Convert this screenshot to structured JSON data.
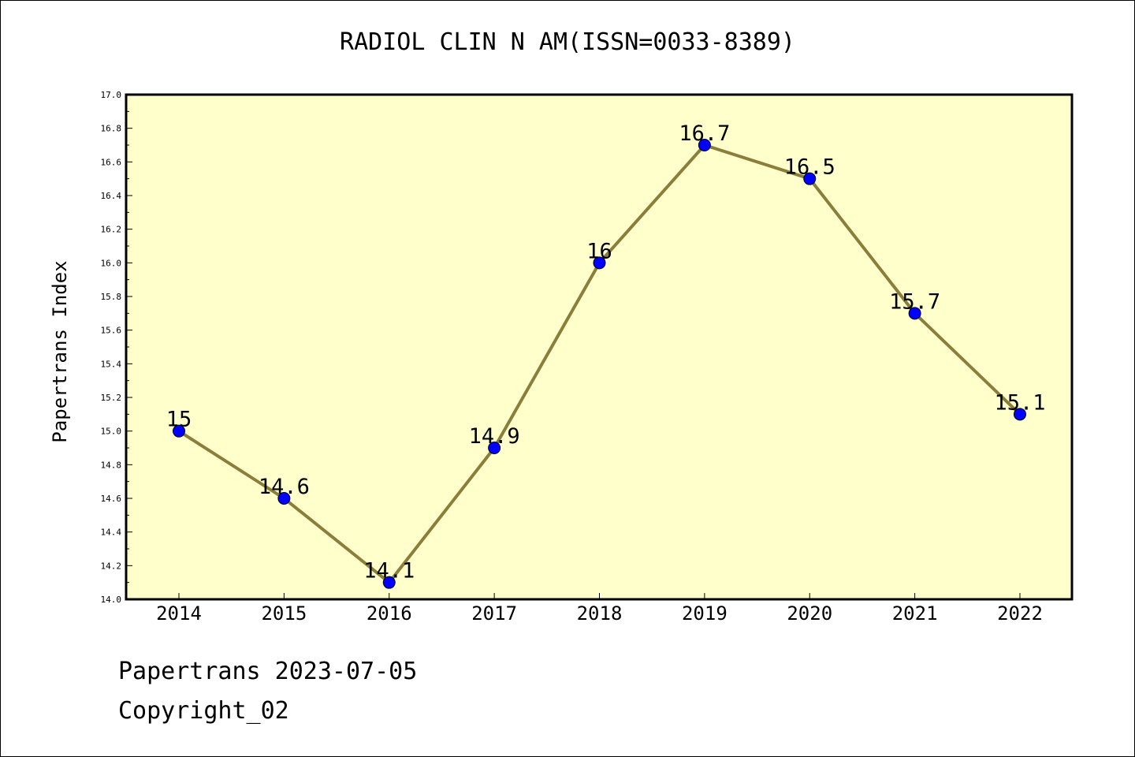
{
  "chart_data": {
    "type": "line",
    "title": "RADIOL CLIN N AM(ISSN=0033-8389)",
    "xlabel": "",
    "ylabel": "Papertrans Index",
    "x": [
      "2014",
      "2015",
      "2016",
      "2017",
      "2018",
      "2019",
      "2020",
      "2021",
      "2022"
    ],
    "series": [
      {
        "values": [
          15,
          14.6,
          14.1,
          14.9,
          16,
          16.7,
          16.5,
          15.7,
          15.1
        ],
        "labels": [
          "15",
          "14.6",
          "14.1",
          "14.9",
          "16",
          "16.7",
          "16.5",
          "15.7",
          "15.1"
        ],
        "line_color": "#8b7d3a",
        "marker_color": "#0000ff"
      }
    ],
    "ylim": [
      14.0,
      17.0
    ],
    "yticks": [
      "14.0",
      "14.2",
      "14.4",
      "14.6",
      "14.8",
      "15.0",
      "15.2",
      "15.4",
      "15.6",
      "15.8",
      "16.0",
      "16.2",
      "16.4",
      "16.6",
      "16.8",
      "17.0"
    ],
    "plot_background": "#ffffcc",
    "grid": false,
    "legend": "none"
  },
  "footer": {
    "line1": "Papertrans 2023-07-05",
    "line2": "Copyright_02"
  }
}
